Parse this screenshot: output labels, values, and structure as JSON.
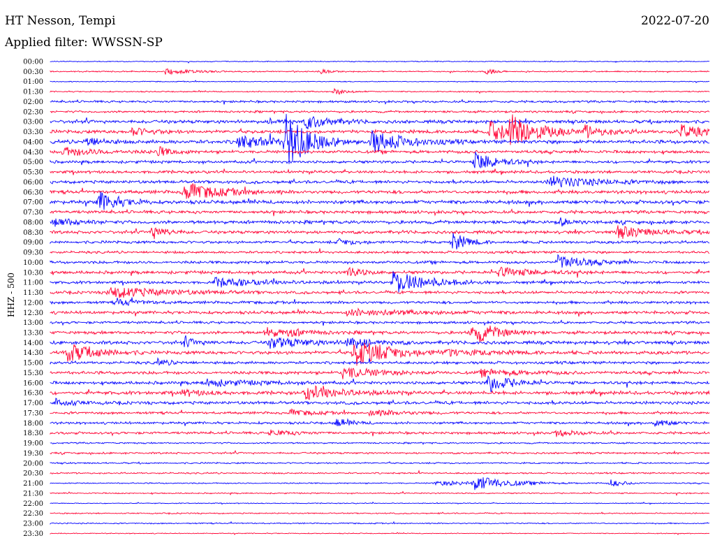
{
  "header": {
    "station": "HT Nesson, Tempi",
    "date": "2022-07-20",
    "filter_label": "Applied filter: WWSSN-SP",
    "channel_label": "HHZ - 500"
  },
  "chart_data": {
    "type": "line",
    "title": "HT Nesson, Tempi",
    "subtitle": "Applied filter: WWSSN-SP",
    "ylabel": "HHZ - 500",
    "date": "2022-07-20",
    "colors": {
      "even_rows": "#0000ff",
      "odd_rows": "#ff0033"
    },
    "row_labels": [
      "00:00",
      "00:30",
      "01:00",
      "01:30",
      "02:00",
      "02:30",
      "03:00",
      "03:30",
      "04:00",
      "04:30",
      "05:00",
      "05:30",
      "06:00",
      "06:30",
      "07:00",
      "07:30",
      "08:00",
      "08:30",
      "09:00",
      "09:30",
      "10:00",
      "10:30",
      "11:00",
      "11:30",
      "12:00",
      "12:30",
      "13:00",
      "13:30",
      "14:00",
      "14:30",
      "15:00",
      "15:30",
      "16:00",
      "16:30",
      "17:00",
      "17:30",
      "18:00",
      "18:30",
      "19:00",
      "19:30",
      "20:00",
      "20:30",
      "21:00",
      "21:30",
      "22:00",
      "22:30",
      "23:00",
      "23:30"
    ],
    "noise_level": [
      0.6,
      0.8,
      0.6,
      0.8,
      1.4,
      1.4,
      2.2,
      2.2,
      2.4,
      2.0,
      1.8,
      1.8,
      2.0,
      2.2,
      2.4,
      2.0,
      2.2,
      2.0,
      1.8,
      1.6,
      1.8,
      2.0,
      1.8,
      1.8,
      1.8,
      2.0,
      1.6,
      2.0,
      2.2,
      2.2,
      1.8,
      2.0,
      2.0,
      2.2,
      2.0,
      1.6,
      1.6,
      1.6,
      1.0,
      1.2,
      1.0,
      1.0,
      0.8,
      0.8,
      0.6,
      0.8,
      0.8,
      0.6
    ],
    "events": [
      {
        "row": 1,
        "minute": 5.2,
        "amp": 4,
        "dur": 1.2
      },
      {
        "row": 1,
        "minute": 12.3,
        "amp": 3,
        "dur": 0.4
      },
      {
        "row": 1,
        "minute": 19.8,
        "amp": 5,
        "dur": 0.4
      },
      {
        "row": 3,
        "minute": 12.9,
        "amp": 5,
        "dur": 0.5
      },
      {
        "row": 6,
        "minute": 11.6,
        "amp": 10,
        "dur": 1.0
      },
      {
        "row": 6,
        "minute": 10.0,
        "amp": 4,
        "dur": 0.6
      },
      {
        "row": 7,
        "minute": 3.7,
        "amp": 6,
        "dur": 0.8
      },
      {
        "row": 7,
        "minute": 20.0,
        "amp": 14,
        "dur": 1.2
      },
      {
        "row": 7,
        "minute": 20.9,
        "amp": 20,
        "dur": 1.2
      },
      {
        "row": 7,
        "minute": 24.3,
        "amp": 8,
        "dur": 1.0
      },
      {
        "row": 7,
        "minute": 28.6,
        "amp": 10,
        "dur": 1.0
      },
      {
        "row": 8,
        "minute": 1.6,
        "amp": 8,
        "dur": 0.6
      },
      {
        "row": 8,
        "minute": 8.5,
        "amp": 8,
        "dur": 2.2
      },
      {
        "row": 8,
        "minute": 10.7,
        "amp": 40,
        "dur": 0.9
      },
      {
        "row": 8,
        "minute": 14.6,
        "amp": 16,
        "dur": 1.4
      },
      {
        "row": 9,
        "minute": 0.5,
        "amp": 6,
        "dur": 1.5
      },
      {
        "row": 9,
        "minute": 4.8,
        "amp": 8,
        "dur": 0.6
      },
      {
        "row": 10,
        "minute": 19.3,
        "amp": 14,
        "dur": 1.0
      },
      {
        "row": 12,
        "minute": 22.7,
        "amp": 8,
        "dur": 2.0
      },
      {
        "row": 13,
        "minute": 6.1,
        "amp": 13,
        "dur": 1.5
      },
      {
        "row": 14,
        "minute": 2.2,
        "amp": 16,
        "dur": 0.8
      },
      {
        "row": 16,
        "minute": 0.2,
        "amp": 6,
        "dur": 1.0
      },
      {
        "row": 16,
        "minute": 23.2,
        "amp": 6,
        "dur": 0.4
      },
      {
        "row": 17,
        "minute": 4.6,
        "amp": 10,
        "dur": 0.6
      },
      {
        "row": 17,
        "minute": 25.8,
        "amp": 8,
        "dur": 1.5
      },
      {
        "row": 18,
        "minute": 18.3,
        "amp": 14,
        "dur": 0.6
      },
      {
        "row": 18,
        "minute": 13.1,
        "amp": 4,
        "dur": 0.8
      },
      {
        "row": 20,
        "minute": 23.1,
        "amp": 10,
        "dur": 1.2
      },
      {
        "row": 21,
        "minute": 13.5,
        "amp": 8,
        "dur": 0.6
      },
      {
        "row": 21,
        "minute": 20.4,
        "amp": 6,
        "dur": 1.6
      },
      {
        "row": 22,
        "minute": 7.5,
        "amp": 6,
        "dur": 2.0
      },
      {
        "row": 22,
        "minute": 15.6,
        "amp": 16,
        "dur": 1.5
      },
      {
        "row": 23,
        "minute": 2.6,
        "amp": 8,
        "dur": 2.5
      },
      {
        "row": 24,
        "minute": 3.0,
        "amp": 5,
        "dur": 1.0
      },
      {
        "row": 25,
        "minute": 13.5,
        "amp": 4,
        "dur": 3.0
      },
      {
        "row": 27,
        "minute": 9.8,
        "amp": 8,
        "dur": 0.6
      },
      {
        "row": 27,
        "minute": 19.1,
        "amp": 10,
        "dur": 1.0
      },
      {
        "row": 27,
        "minute": 19.5,
        "amp": 6,
        "dur": 1.0
      },
      {
        "row": 27,
        "minute": 10.8,
        "amp": 4,
        "dur": 1.2
      },
      {
        "row": 28,
        "minute": 6.1,
        "amp": 6,
        "dur": 0.6
      },
      {
        "row": 28,
        "minute": 10.0,
        "amp": 8,
        "dur": 1.5
      },
      {
        "row": 28,
        "minute": 13.5,
        "amp": 9,
        "dur": 1.0
      },
      {
        "row": 29,
        "minute": 0.7,
        "amp": 14,
        "dur": 1.2
      },
      {
        "row": 29,
        "minute": 13.8,
        "amp": 20,
        "dur": 1.5
      },
      {
        "row": 29,
        "minute": 18.0,
        "amp": 4,
        "dur": 2.0
      },
      {
        "row": 30,
        "minute": 4.8,
        "amp": 5,
        "dur": 0.6
      },
      {
        "row": 31,
        "minute": 13.3,
        "amp": 8,
        "dur": 1.5
      },
      {
        "row": 31,
        "minute": 19.6,
        "amp": 4,
        "dur": 2.0
      },
      {
        "row": 32,
        "minute": 19.9,
        "amp": 14,
        "dur": 0.9
      },
      {
        "row": 32,
        "minute": 7.0,
        "amp": 5,
        "dur": 2.0
      },
      {
        "row": 33,
        "minute": 11.6,
        "amp": 10,
        "dur": 1.6
      },
      {
        "row": 33,
        "minute": 6.0,
        "amp": 4,
        "dur": 1.0
      },
      {
        "row": 34,
        "minute": 0.2,
        "amp": 6,
        "dur": 0.8
      },
      {
        "row": 35,
        "minute": 10.9,
        "amp": 4,
        "dur": 1.0
      },
      {
        "row": 35,
        "minute": 14.5,
        "amp": 4,
        "dur": 1.5
      },
      {
        "row": 36,
        "minute": 13.0,
        "amp": 6,
        "dur": 0.6
      },
      {
        "row": 36,
        "minute": 27.5,
        "amp": 6,
        "dur": 0.6
      },
      {
        "row": 37,
        "minute": 10.0,
        "amp": 4,
        "dur": 1.0
      },
      {
        "row": 37,
        "minute": 23.0,
        "amp": 4,
        "dur": 1.0
      },
      {
        "row": 42,
        "minute": 19.3,
        "amp": 10,
        "dur": 1.2
      },
      {
        "row": 42,
        "minute": 17.5,
        "amp": 3,
        "dur": 3.0
      },
      {
        "row": 42,
        "minute": 25.5,
        "amp": 5,
        "dur": 0.6
      }
    ]
  }
}
